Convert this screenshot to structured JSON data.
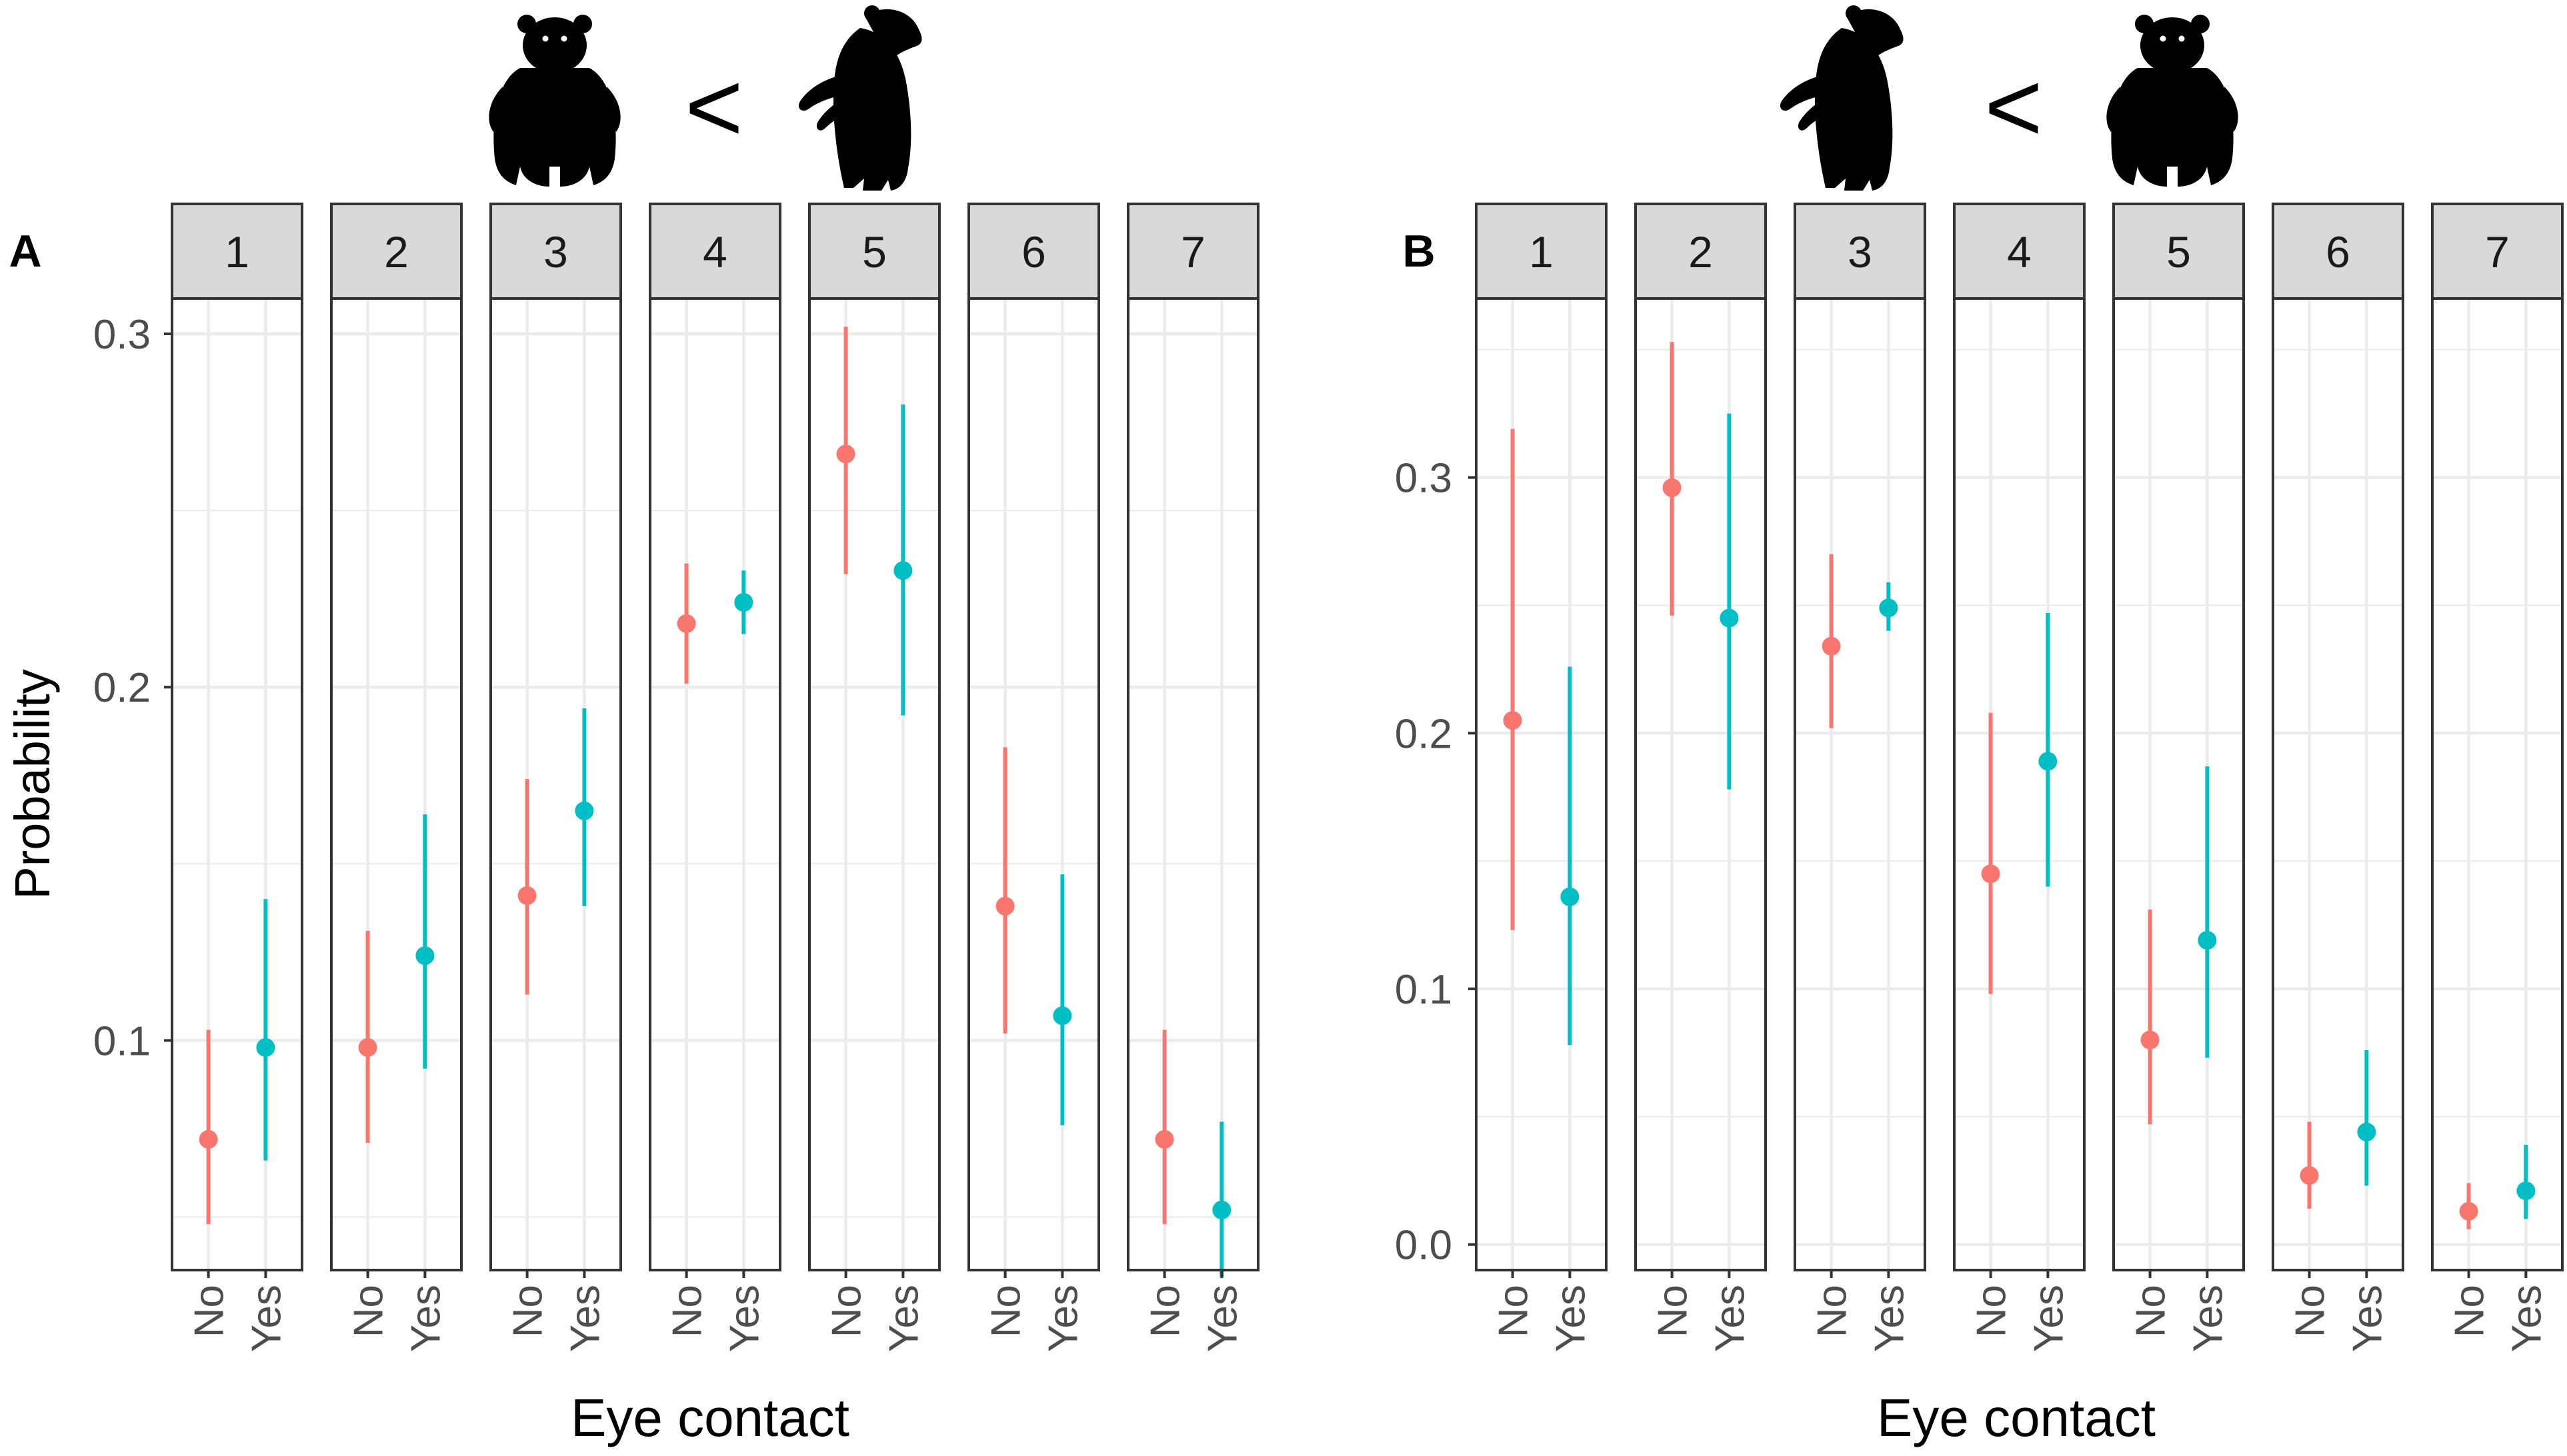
{
  "colors": {
    "no": "#F8766D",
    "yes": "#00BFC4",
    "strip_fill": "#D9D9D9",
    "frame": "#333333",
    "grid": "#EBEBEB",
    "text": "#4D4D4D",
    "bear": "#000000"
  },
  "icons": {
    "A": [
      "bear-standing-front-icon",
      "less-than-sign",
      "bear-standing-side-icon"
    ],
    "B": [
      "bear-standing-side-icon",
      "less-than-sign",
      "bear-standing-front-icon"
    ]
  },
  "chart_data": [
    {
      "type": "scatter",
      "panel_label": "A",
      "comparison_symbol": "<",
      "facets": [
        "1",
        "2",
        "3",
        "4",
        "5",
        "6",
        "7"
      ],
      "categories": [
        "No",
        "Yes"
      ],
      "xlabel": "Eye contact",
      "ylabel": "Probability",
      "ylim": [
        0.035,
        0.31
      ],
      "yticks": [
        0.1,
        0.2,
        0.3
      ],
      "ytick_labels": [
        "0.1",
        "0.2",
        "0.3"
      ],
      "series": [
        {
          "name": "No",
          "points": [
            {
              "facet": "1",
              "y": 0.072,
              "lo": 0.048,
              "hi": 0.103
            },
            {
              "facet": "2",
              "y": 0.098,
              "lo": 0.071,
              "hi": 0.131
            },
            {
              "facet": "3",
              "y": 0.141,
              "lo": 0.113,
              "hi": 0.174
            },
            {
              "facet": "4",
              "y": 0.218,
              "lo": 0.201,
              "hi": 0.235
            },
            {
              "facet": "5",
              "y": 0.266,
              "lo": 0.232,
              "hi": 0.302
            },
            {
              "facet": "6",
              "y": 0.138,
              "lo": 0.102,
              "hi": 0.183
            },
            {
              "facet": "7",
              "y": 0.072,
              "lo": 0.048,
              "hi": 0.103
            }
          ]
        },
        {
          "name": "Yes",
          "points": [
            {
              "facet": "1",
              "y": 0.098,
              "lo": 0.066,
              "hi": 0.14
            },
            {
              "facet": "2",
              "y": 0.124,
              "lo": 0.092,
              "hi": 0.164
            },
            {
              "facet": "3",
              "y": 0.165,
              "lo": 0.138,
              "hi": 0.194
            },
            {
              "facet": "4",
              "y": 0.224,
              "lo": 0.215,
              "hi": 0.233
            },
            {
              "facet": "5",
              "y": 0.233,
              "lo": 0.192,
              "hi": 0.28
            },
            {
              "facet": "6",
              "y": 0.107,
              "lo": 0.076,
              "hi": 0.147
            },
            {
              "facet": "7",
              "y": 0.052,
              "lo": 0.033,
              "hi": 0.077
            }
          ]
        }
      ]
    },
    {
      "type": "scatter",
      "panel_label": "B",
      "comparison_symbol": "<",
      "facets": [
        "1",
        "2",
        "3",
        "4",
        "5",
        "6",
        "7"
      ],
      "categories": [
        "No",
        "Yes"
      ],
      "xlabel": "Eye contact",
      "ylabel": "",
      "ylim": [
        -0.01,
        0.37
      ],
      "yticks": [
        0.0,
        0.1,
        0.2,
        0.3
      ],
      "ytick_labels": [
        "0.0",
        "0.1",
        "0.2",
        "0.3"
      ],
      "series": [
        {
          "name": "No",
          "points": [
            {
              "facet": "1",
              "y": 0.205,
              "lo": 0.123,
              "hi": 0.319
            },
            {
              "facet": "2",
              "y": 0.296,
              "lo": 0.246,
              "hi": 0.353
            },
            {
              "facet": "3",
              "y": 0.234,
              "lo": 0.202,
              "hi": 0.27
            },
            {
              "facet": "4",
              "y": 0.145,
              "lo": 0.098,
              "hi": 0.208
            },
            {
              "facet": "5",
              "y": 0.08,
              "lo": 0.047,
              "hi": 0.131
            },
            {
              "facet": "6",
              "y": 0.027,
              "lo": 0.014,
              "hi": 0.048
            },
            {
              "facet": "7",
              "y": 0.013,
              "lo": 0.006,
              "hi": 0.024
            }
          ]
        },
        {
          "name": "Yes",
          "points": [
            {
              "facet": "1",
              "y": 0.136,
              "lo": 0.078,
              "hi": 0.226
            },
            {
              "facet": "2",
              "y": 0.245,
              "lo": 0.178,
              "hi": 0.325
            },
            {
              "facet": "3",
              "y": 0.249,
              "lo": 0.24,
              "hi": 0.259
            },
            {
              "facet": "4",
              "y": 0.189,
              "lo": 0.14,
              "hi": 0.247
            },
            {
              "facet": "5",
              "y": 0.119,
              "lo": 0.073,
              "hi": 0.187
            },
            {
              "facet": "6",
              "y": 0.044,
              "lo": 0.023,
              "hi": 0.076
            },
            {
              "facet": "7",
              "y": 0.021,
              "lo": 0.01,
              "hi": 0.039
            }
          ]
        }
      ]
    }
  ]
}
